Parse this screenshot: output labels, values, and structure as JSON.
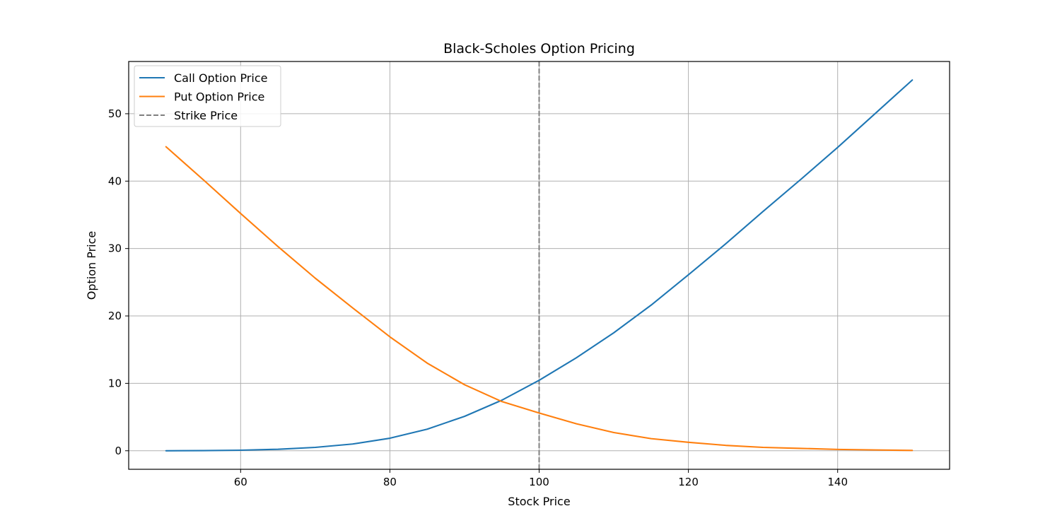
{
  "chart_data": {
    "type": "line",
    "title": "Black-Scholes Option Pricing",
    "xlabel": "Stock Price",
    "ylabel": "Option Price",
    "xlim": [
      45,
      155
    ],
    "ylim": [
      -2.75,
      57.75
    ],
    "xticks": [
      60,
      80,
      100,
      120,
      140
    ],
    "yticks": [
      0,
      10,
      20,
      30,
      40,
      50
    ],
    "grid": true,
    "legend_position": "top-left",
    "x": [
      50,
      55,
      60,
      65,
      70,
      75,
      80,
      85,
      90,
      95,
      100,
      105,
      110,
      115,
      120,
      125,
      130,
      135,
      140,
      145,
      150
    ],
    "series": [
      {
        "name": "Call Option Price",
        "color": "#1f77b4",
        "values": [
          0.0,
          0.02,
          0.08,
          0.22,
          0.5,
          1.0,
          1.86,
          3.2,
          5.1,
          7.5,
          10.45,
          13.8,
          17.5,
          21.6,
          26.1,
          30.7,
          35.5,
          40.2,
          45.0,
          50.0,
          55.0
        ]
      },
      {
        "name": "Put Option Price",
        "color": "#ff7f0e",
        "values": [
          45.1,
          40.2,
          35.2,
          30.3,
          25.6,
          21.2,
          16.9,
          13.0,
          9.8,
          7.3,
          5.6,
          4.0,
          2.7,
          1.8,
          1.25,
          0.8,
          0.5,
          0.35,
          0.2,
          0.12,
          0.05
        ]
      }
    ],
    "vlines": [
      {
        "name": "Strike Price",
        "x": 100,
        "color": "#808080",
        "style": "dashed"
      }
    ]
  }
}
